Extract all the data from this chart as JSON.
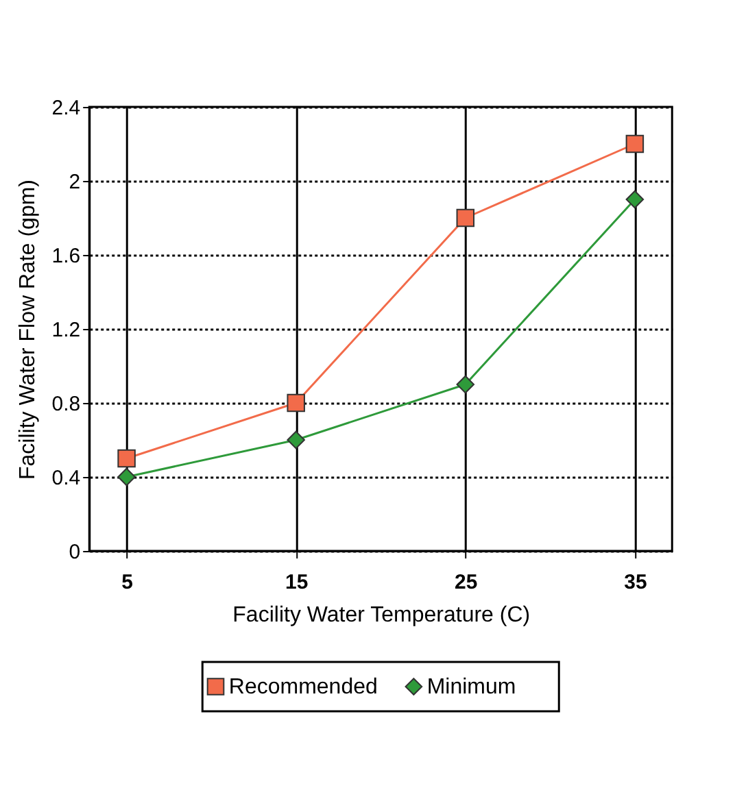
{
  "chart_data": {
    "type": "line",
    "xlabel": "Facility Water Temperature (C)",
    "ylabel": "Facility Water Flow Rate (gpm)",
    "categories": [
      "5",
      "15",
      "25",
      "35"
    ],
    "ylim": [
      0,
      2.4
    ],
    "yticks": [
      0,
      0.4,
      0.8,
      1.2,
      1.6,
      2,
      2.4
    ],
    "grid": true,
    "legend": "bottom",
    "line_style": "solid",
    "series": [
      {
        "name": "Recommended",
        "color": "#f26b4a",
        "marker": "square",
        "values": [
          0.5,
          0.8,
          1.8,
          2.2
        ]
      },
      {
        "name": "Minimum",
        "color": "#2e9a3a",
        "marker": "diamond",
        "values": [
          0.4,
          0.6,
          0.9,
          1.9
        ]
      }
    ]
  }
}
